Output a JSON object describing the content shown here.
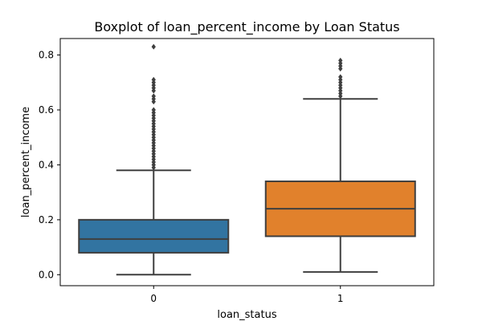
{
  "chart_data": {
    "type": "boxplot",
    "title": "Boxplot of loan_percent_income by Loan Status",
    "xlabel": "loan_status",
    "ylabel": "loan_percent_income",
    "categories": [
      "0",
      "1"
    ],
    "ylim": [
      -0.04,
      0.86
    ],
    "yticks": [
      0.0,
      0.2,
      0.4,
      0.6,
      0.8
    ],
    "ytick_labels": [
      "0.0",
      "0.2",
      "0.4",
      "0.6",
      "0.8"
    ],
    "grid": false,
    "boxes": [
      {
        "category": "0",
        "color": "#3274a1",
        "whisker_low": 0.0,
        "q1": 0.08,
        "median": 0.13,
        "q3": 0.2,
        "whisker_high": 0.38,
        "outliers": [
          0.39,
          0.4,
          0.41,
          0.42,
          0.43,
          0.44,
          0.45,
          0.46,
          0.47,
          0.48,
          0.49,
          0.5,
          0.51,
          0.52,
          0.53,
          0.54,
          0.55,
          0.56,
          0.57,
          0.58,
          0.59,
          0.6,
          0.63,
          0.64,
          0.65,
          0.67,
          0.68,
          0.69,
          0.7,
          0.71,
          0.83
        ]
      },
      {
        "category": "1",
        "color": "#e1812c",
        "whisker_low": 0.01,
        "q1": 0.14,
        "median": 0.24,
        "q3": 0.34,
        "whisker_high": 0.64,
        "outliers": [
          0.65,
          0.66,
          0.67,
          0.68,
          0.69,
          0.7,
          0.71,
          0.72,
          0.75,
          0.76,
          0.77,
          0.78
        ]
      }
    ]
  }
}
